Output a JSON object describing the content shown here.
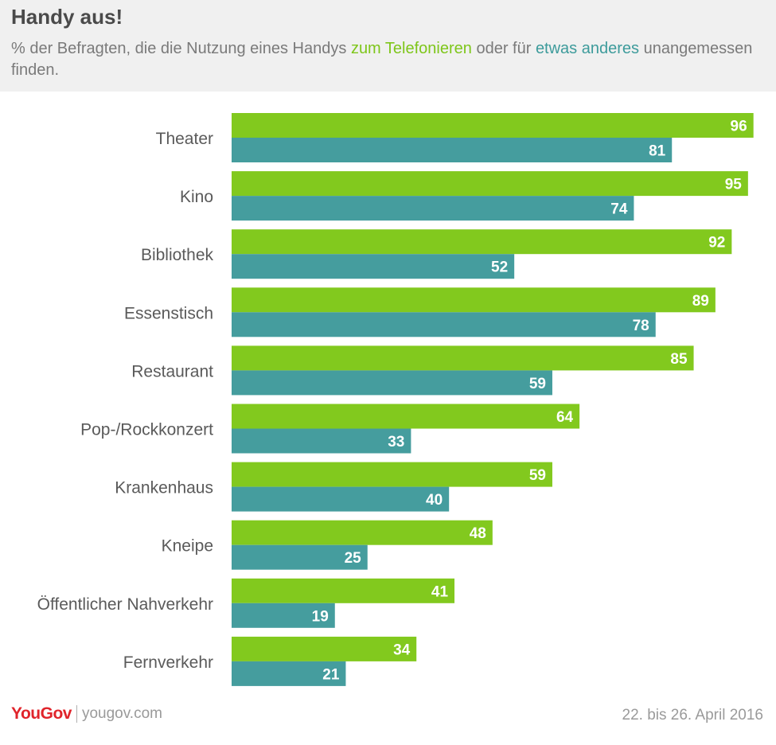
{
  "header": {
    "title": "Handy aus!",
    "subtitle_part1": "% der Befragten, die die Nutzung eines Handys ",
    "subtitle_green": "zum Telefonieren",
    "subtitle_part2": " oder für ",
    "subtitle_teal": "etwas anderes",
    "subtitle_part3": " unangemessen finden."
  },
  "colors": {
    "green": "#82c91e",
    "teal": "#459d9e",
    "header_bg": "#f0f0f0",
    "brand_red": "#e0242b"
  },
  "chart_data": {
    "type": "bar",
    "orientation": "horizontal",
    "categories": [
      "Theater",
      "Kino",
      "Bibliothek",
      "Essenstisch",
      "Restaurant",
      "Pop-/Rockkonzert",
      "Krankenhaus",
      "Kneipe",
      "Öffentlicher Nahverkehr",
      "Fernverkehr"
    ],
    "series": [
      {
        "name": "zum Telefonieren",
        "color": "#82c91e",
        "values": [
          96,
          95,
          92,
          89,
          85,
          64,
          59,
          48,
          41,
          34
        ]
      },
      {
        "name": "etwas anderes",
        "color": "#459d9e",
        "values": [
          81,
          74,
          52,
          78,
          59,
          33,
          40,
          25,
          19,
          21
        ]
      }
    ],
    "xlim": [
      0,
      96
    ],
    "grid": false,
    "data_labels": true
  },
  "footer": {
    "logo_you": "You",
    "logo_gov": "Gov",
    "site": "yougov.com",
    "date": "22. bis 26. April 2016"
  }
}
